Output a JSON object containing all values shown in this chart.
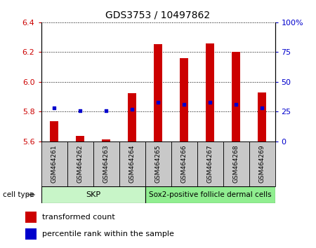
{
  "title": "GDS3753 / 10497862",
  "samples": [
    "GSM464261",
    "GSM464262",
    "GSM464263",
    "GSM464264",
    "GSM464265",
    "GSM464266",
    "GSM464267",
    "GSM464268",
    "GSM464269"
  ],
  "transformed_count": [
    5.735,
    5.635,
    5.615,
    5.925,
    6.255,
    6.16,
    6.26,
    6.2,
    5.93
  ],
  "percentile_rank": [
    28,
    26,
    26,
    27,
    33,
    31,
    33,
    31,
    28
  ],
  "ylim_left": [
    5.6,
    6.4
  ],
  "ylim_right": [
    0,
    100
  ],
  "yticks_left": [
    5.6,
    5.8,
    6.0,
    6.2,
    6.4
  ],
  "yticks_right": [
    0,
    25,
    50,
    75,
    100
  ],
  "ytick_labels_right": [
    "0",
    "25",
    "50",
    "75",
    "100%"
  ],
  "skp_count": 4,
  "skp_label": "SKP",
  "skp_color": "#c8f5c8",
  "sox2_label": "Sox2-positive follicle dermal cells",
  "sox2_color": "#90ee90",
  "bar_color": "#CC0000",
  "dot_color": "#0000CC",
  "background_color": "#FFFFFF",
  "bar_width": 0.35,
  "legend_items": [
    {
      "label": "transformed count",
      "color": "#CC0000"
    },
    {
      "label": "percentile rank within the sample",
      "color": "#0000CC"
    }
  ],
  "sample_box_color": "#c8c8c8",
  "cell_type_label": "cell type"
}
